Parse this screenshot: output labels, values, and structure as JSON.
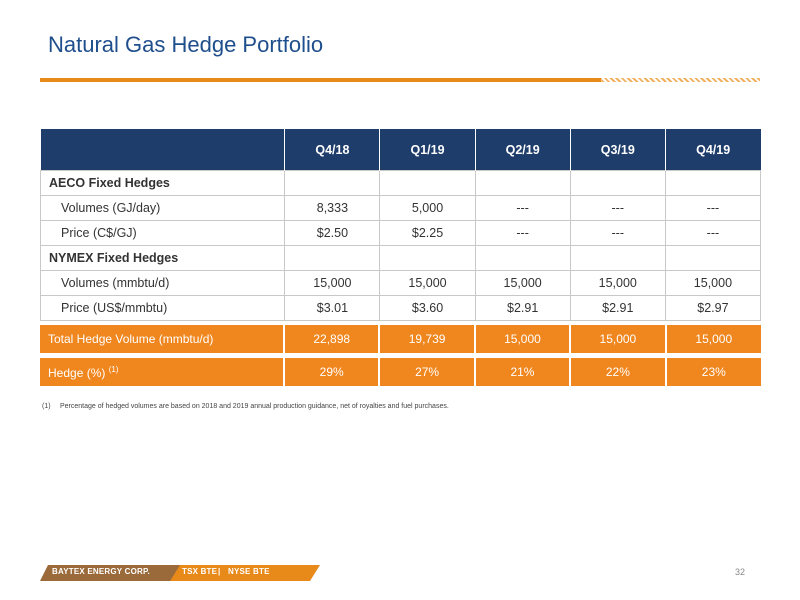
{
  "title": "Natural Gas Hedge Portfolio",
  "table": {
    "headers": [
      "",
      "Q4/18",
      "Q1/19",
      "Q2/19",
      "Q3/19",
      "Q4/19"
    ],
    "rows": [
      {
        "label": "AECO Fixed Hedges",
        "values": [
          "",
          "",
          "",
          "",
          ""
        ]
      },
      {
        "label": "Volumes (GJ/day)",
        "values": [
          "8,333",
          "5,000",
          "---",
          "---",
          "---"
        ]
      },
      {
        "label": "Price (C$/GJ)",
        "values": [
          "$2.50",
          "$2.25",
          "---",
          "---",
          "---"
        ]
      },
      {
        "label": "NYMEX Fixed Hedges",
        "values": [
          "",
          "",
          "",
          "",
          ""
        ]
      },
      {
        "label": "Volumes (mmbtu/d)",
        "values": [
          "15,000",
          "15,000",
          "15,000",
          "15,000",
          "15,000"
        ]
      },
      {
        "label": "Price (US$/mmbtu)",
        "values": [
          "$3.01",
          "$3.60",
          "$2.91",
          "$2.91",
          "$2.97"
        ]
      }
    ]
  },
  "total": {
    "label": "Total Hedge Volume (mmbtu/d)",
    "values": [
      "22,898",
      "19,739",
      "15,000",
      "15,000",
      "15,000"
    ]
  },
  "hedge": {
    "label": "Hedge (%)",
    "sup": "(1)",
    "values": [
      "29%",
      "27%",
      "21%",
      "22%",
      "23%"
    ]
  },
  "footnote": {
    "num": "(1)",
    "text": "Percentage of hedged volumes are based on 2018 and 2019 annual production guidance, net of royalties and fuel purchases."
  },
  "footer": {
    "company": "BAYTEX ENERGY CORP.",
    "tsx": "TSX BTE",
    "sep": "|",
    "nyse": "NYSE BTE",
    "page": "32"
  },
  "colors": {
    "navy": "#1e3d6b",
    "orange": "#f0861e",
    "title_blue": "#1f4e8c"
  }
}
